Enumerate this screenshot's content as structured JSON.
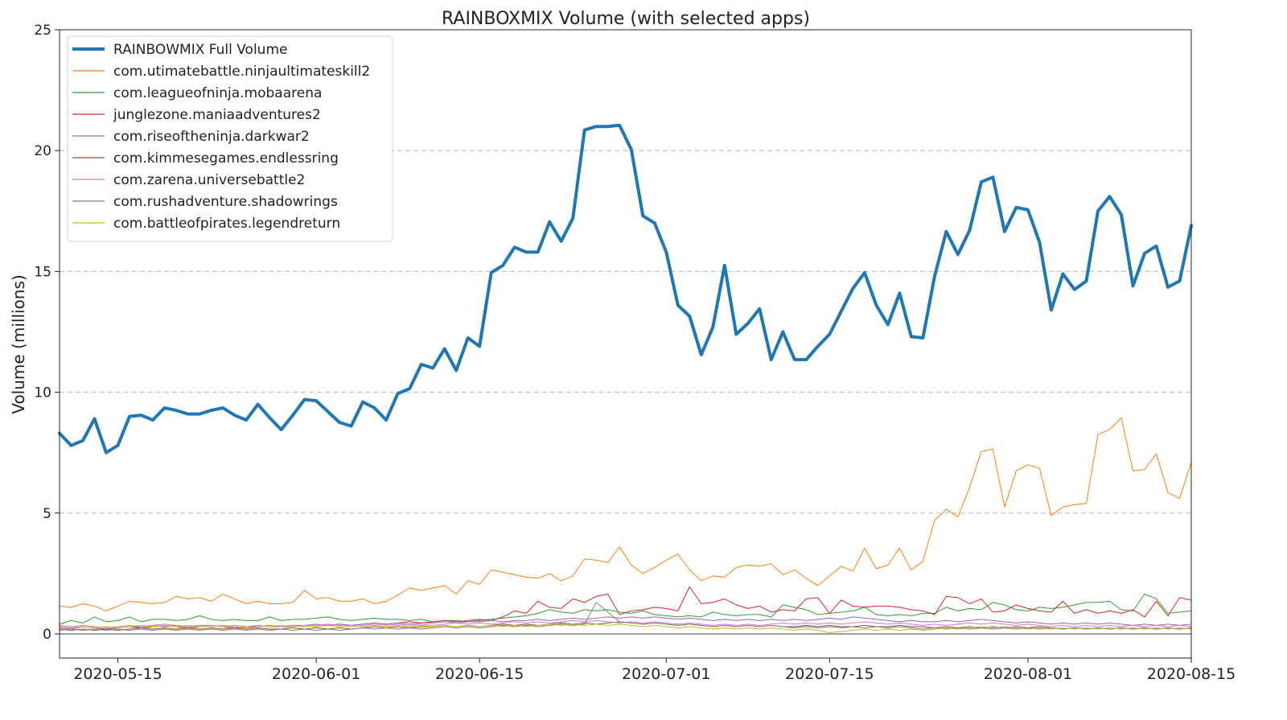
{
  "chart_data": {
    "type": "line",
    "title": "RAINBOXMIX Volume (with selected apps)",
    "ylabel": "Volume (millions)",
    "xlabel": "",
    "ylim": [
      -1,
      25
    ],
    "xlim": [
      "2020-05-10",
      "2020-08-15"
    ],
    "yticks": [
      0,
      5,
      10,
      15,
      20,
      25
    ],
    "xticks": [
      "2020-05-15",
      "2020-06-01",
      "2020-06-15",
      "2020-07-01",
      "2020-07-15",
      "2020-08-01",
      "2020-08-15"
    ],
    "grid": "horizontal dashed at major y ticks",
    "legend_position": "top-left",
    "x_start": "2020-05-10",
    "x_step_days": 1,
    "series": [
      {
        "name": "RAINBOWMIX Full Volume",
        "color": "#1f77b4",
        "linewidth": 4,
        "values": [
          8.3,
          7.8,
          8.0,
          8.9,
          7.5,
          7.8,
          9.0,
          9.05,
          8.85,
          9.35,
          9.25,
          9.1,
          9.1,
          9.25,
          9.35,
          9.05,
          8.85,
          9.5,
          8.95,
          8.45,
          9.05,
          9.7,
          9.65,
          9.2,
          8.75,
          8.6,
          9.6,
          9.35,
          8.85,
          9.95,
          10.15,
          11.15,
          11.0,
          11.8,
          10.9,
          12.25,
          11.9,
          14.95,
          15.25,
          16.0,
          15.8,
          15.8,
          17.05,
          16.25,
          17.2,
          20.85,
          21.0,
          21.0,
          21.05,
          20.05,
          17.3,
          17.0,
          15.8,
          13.6,
          13.15,
          11.55,
          12.7,
          15.25,
          12.4,
          12.85,
          13.45,
          11.35,
          12.5,
          11.35,
          11.35,
          11.9,
          12.4,
          13.35,
          14.3,
          14.95,
          13.6,
          12.8,
          14.1,
          12.3,
          12.25,
          14.8,
          16.65,
          15.7,
          16.7,
          18.7,
          18.9,
          16.65,
          17.65,
          17.55,
          16.2,
          13.4,
          14.9,
          14.25,
          14.6,
          17.5,
          18.1,
          17.35,
          14.4,
          15.75,
          16.05,
          14.35,
          14.6,
          16.9
        ]
      },
      {
        "name": "com.utimatebattle.ninjaultimateskill2",
        "color": "#ff7f0e",
        "linewidth": 1,
        "values": [
          1.15,
          1.1,
          1.25,
          1.15,
          0.95,
          1.15,
          1.35,
          1.3,
          1.25,
          1.3,
          1.55,
          1.45,
          1.5,
          1.35,
          1.65,
          1.45,
          1.25,
          1.35,
          1.25,
          1.25,
          1.3,
          1.8,
          1.45,
          1.5,
          1.35,
          1.35,
          1.45,
          1.25,
          1.35,
          1.6,
          1.9,
          1.8,
          1.9,
          2.0,
          1.65,
          2.2,
          2.05,
          2.65,
          2.55,
          2.45,
          2.35,
          2.3,
          2.5,
          2.2,
          2.4,
          3.1,
          3.05,
          2.95,
          3.6,
          2.85,
          2.5,
          2.75,
          3.05,
          3.3,
          2.65,
          2.2,
          2.4,
          2.35,
          2.75,
          2.85,
          2.8,
          2.9,
          2.45,
          2.65,
          2.3,
          2.0,
          2.4,
          2.8,
          2.6,
          3.55,
          2.7,
          2.85,
          3.55,
          2.65,
          3.0,
          4.7,
          5.15,
          4.85,
          6.05,
          7.55,
          7.65,
          5.25,
          6.75,
          7.0,
          6.85,
          4.9,
          5.25,
          5.35,
          5.4,
          8.25,
          8.45,
          8.95,
          6.75,
          6.8,
          7.45,
          5.85,
          5.6,
          7.1
        ]
      },
      {
        "name": "com.leagueofninja.mobaarena",
        "color": "#2ca02c",
        "linewidth": 1,
        "values": [
          0.4,
          0.55,
          0.45,
          0.7,
          0.5,
          0.55,
          0.7,
          0.5,
          0.6,
          0.6,
          0.55,
          0.6,
          0.75,
          0.6,
          0.55,
          0.6,
          0.55,
          0.55,
          0.7,
          0.55,
          0.6,
          0.6,
          0.65,
          0.7,
          0.6,
          0.55,
          0.6,
          0.65,
          0.6,
          0.6,
          0.55,
          0.6,
          0.5,
          0.55,
          0.55,
          0.5,
          0.55,
          0.6,
          0.65,
          0.7,
          0.75,
          0.85,
          1.0,
          0.9,
          0.85,
          1.0,
          0.95,
          1.0,
          0.9,
          0.85,
          0.95,
          0.8,
          0.75,
          0.7,
          0.75,
          0.7,
          0.9,
          0.8,
          0.75,
          0.8,
          0.8,
          0.7,
          1.2,
          1.1,
          1.0,
          0.8,
          0.85,
          0.9,
          0.95,
          1.1,
          0.8,
          0.75,
          0.8,
          0.75,
          0.85,
          0.85,
          1.1,
          0.95,
          1.05,
          1.0,
          1.3,
          1.2,
          1.0,
          0.95,
          1.1,
          1.05,
          1.1,
          1.2,
          1.3,
          1.3,
          1.35,
          1.0,
          0.95,
          1.65,
          1.45,
          0.85,
          0.9,
          0.95
        ]
      },
      {
        "name": "junglezone.maniaadventures2",
        "color": "#d62728",
        "linewidth": 1,
        "values": [
          0.3,
          0.25,
          0.3,
          0.25,
          0.2,
          0.25,
          0.3,
          0.25,
          0.3,
          0.35,
          0.3,
          0.25,
          0.3,
          0.35,
          0.3,
          0.25,
          0.3,
          0.3,
          0.35,
          0.3,
          0.3,
          0.35,
          0.3,
          0.35,
          0.4,
          0.35,
          0.4,
          0.45,
          0.4,
          0.45,
          0.5,
          0.45,
          0.5,
          0.55,
          0.5,
          0.55,
          0.6,
          0.55,
          0.7,
          0.95,
          0.85,
          1.35,
          1.1,
          1.05,
          1.45,
          1.3,
          1.55,
          1.65,
          0.8,
          0.95,
          1.0,
          1.1,
          1.05,
          0.95,
          1.95,
          1.25,
          1.3,
          1.45,
          1.2,
          1.05,
          1.15,
          0.9,
          1.0,
          0.95,
          1.45,
          1.5,
          0.85,
          1.4,
          1.15,
          1.1,
          1.15,
          1.15,
          1.1,
          1.0,
          0.95,
          0.8,
          1.55,
          1.5,
          1.25,
          1.45,
          0.9,
          0.95,
          1.2,
          1.05,
          0.95,
          0.9,
          1.35,
          0.85,
          1.0,
          0.85,
          0.95,
          0.85,
          1.0,
          0.7,
          1.35,
          0.75,
          1.5,
          1.4
        ]
      },
      {
        "name": "com.riseoftheninja.darkwar2",
        "color": "#9467bd",
        "linewidth": 1,
        "values": [
          0.25,
          0.2,
          0.3,
          0.25,
          0.2,
          0.25,
          0.3,
          0.3,
          0.35,
          0.3,
          0.35,
          0.3,
          0.35,
          0.35,
          0.3,
          0.35,
          0.3,
          0.35,
          0.3,
          0.3,
          0.35,
          0.35,
          0.4,
          0.35,
          0.4,
          0.35,
          0.4,
          0.45,
          0.4,
          0.45,
          0.4,
          0.45,
          0.45,
          0.5,
          0.45,
          0.5,
          0.5,
          0.55,
          0.5,
          0.55,
          0.55,
          0.6,
          0.55,
          0.6,
          0.65,
          0.6,
          0.65,
          0.7,
          0.65,
          0.7,
          0.65,
          0.7,
          0.65,
          0.6,
          0.65,
          0.6,
          0.55,
          0.6,
          0.55,
          0.6,
          0.55,
          0.6,
          0.55,
          0.6,
          0.55,
          0.6,
          0.65,
          0.6,
          0.7,
          0.65,
          0.6,
          0.55,
          0.5,
          0.55,
          0.5,
          0.5,
          0.55,
          0.5,
          0.55,
          0.6,
          0.55,
          0.5,
          0.45,
          0.5,
          0.45,
          0.4,
          0.45,
          0.4,
          0.45,
          0.4,
          0.45,
          0.4,
          0.35,
          0.4,
          0.35,
          0.4,
          0.35,
          0.4
        ]
      },
      {
        "name": "com.kimmesegames.endlessring",
        "color": "#8c564b",
        "linewidth": 1,
        "values": [
          0.2,
          0.15,
          0.2,
          0.15,
          0.2,
          0.15,
          0.2,
          0.25,
          0.2,
          0.25,
          0.2,
          0.25,
          0.2,
          0.25,
          0.2,
          0.25,
          0.2,
          0.25,
          0.2,
          0.2,
          0.25,
          0.2,
          0.25,
          0.2,
          0.25,
          0.2,
          0.25,
          0.3,
          0.25,
          0.3,
          0.25,
          0.3,
          0.3,
          0.35,
          0.3,
          0.35,
          0.3,
          0.35,
          0.4,
          0.35,
          0.4,
          0.35,
          0.4,
          0.45,
          0.4,
          0.45,
          0.4,
          0.45,
          0.5,
          0.45,
          0.4,
          0.45,
          0.4,
          0.35,
          0.4,
          0.35,
          0.3,
          0.35,
          0.3,
          0.35,
          0.3,
          0.35,
          0.3,
          0.3,
          0.35,
          0.3,
          0.35,
          0.3,
          0.3,
          0.35,
          0.3,
          0.3,
          0.35,
          0.3,
          0.3,
          0.25,
          0.3,
          0.25,
          0.3,
          0.25,
          0.3,
          0.25,
          0.3,
          0.25,
          0.3,
          0.25,
          0.2,
          0.25,
          0.2,
          0.25,
          0.2,
          0.25,
          0.2,
          0.25,
          0.2,
          0.25,
          0.2,
          0.25
        ]
      },
      {
        "name": "com.zarena.universebattle2",
        "color": "#e377c2",
        "linewidth": 1,
        "values": [
          0.35,
          0.3,
          0.35,
          0.3,
          0.25,
          0.3,
          0.35,
          0.3,
          0.35,
          0.4,
          0.35,
          0.3,
          0.35,
          0.3,
          0.35,
          0.3,
          0.25,
          0.3,
          0.35,
          0.3,
          0.35,
          0.3,
          0.35,
          0.4,
          0.35,
          0.3,
          0.35,
          0.4,
          0.35,
          0.4,
          0.35,
          0.4,
          0.35,
          0.4,
          0.45,
          0.4,
          0.45,
          0.4,
          0.45,
          0.5,
          0.45,
          0.5,
          0.45,
          0.5,
          0.55,
          0.5,
          0.55,
          0.5,
          0.45,
          0.5,
          0.45,
          0.5,
          0.45,
          0.4,
          0.45,
          0.4,
          0.35,
          0.4,
          0.35,
          0.4,
          0.35,
          0.4,
          0.45,
          0.4,
          0.45,
          0.4,
          0.45,
          0.4,
          0.45,
          0.5,
          0.45,
          0.4,
          0.45,
          0.4,
          0.35,
          0.4,
          0.35,
          0.4,
          0.45,
          0.4,
          0.45,
          0.4,
          0.35,
          0.4,
          0.35,
          0.3,
          0.35,
          0.3,
          0.35,
          0.3,
          0.35,
          0.3,
          0.35,
          0.3,
          0.35,
          0.3,
          0.35,
          0.3
        ]
      },
      {
        "name": "com.rushadventure.shadowrings",
        "color": "#7f7f7f",
        "linewidth": 1,
        "values": [
          0.15,
          0.2,
          0.15,
          0.2,
          0.15,
          0.2,
          0.15,
          0.2,
          0.15,
          0.2,
          0.15,
          0.2,
          0.15,
          0.2,
          0.15,
          0.2,
          0.15,
          0.2,
          0.15,
          0.2,
          0.15,
          0.2,
          0.15,
          0.2,
          0.15,
          0.2,
          0.25,
          0.2,
          0.25,
          0.2,
          0.25,
          0.2,
          0.25,
          0.3,
          0.25,
          0.3,
          0.25,
          0.3,
          0.35,
          0.3,
          0.35,
          0.3,
          0.35,
          0.4,
          0.35,
          0.4,
          1.3,
          0.9,
          0.5,
          0.45,
          0.4,
          0.45,
          0.4,
          0.35,
          0.4,
          0.35,
          0.3,
          0.35,
          0.3,
          0.35,
          0.3,
          0.35,
          0.3,
          0.25,
          0.3,
          0.25,
          0.3,
          0.25,
          0.3,
          0.25,
          0.3,
          0.25,
          0.3,
          0.25,
          0.2,
          0.25,
          0.2,
          0.25,
          0.2,
          0.25,
          0.2,
          0.25,
          0.2,
          0.25,
          0.2,
          0.25,
          0.2,
          0.25,
          0.2,
          0.25,
          0.2,
          0.25,
          0.2,
          0.25,
          0.2,
          0.25,
          0.2,
          0.25
        ]
      },
      {
        "name": "com.battleofpirates.legendreturn",
        "color": "#bcbd22",
        "linewidth": 1,
        "values": [
          0.3,
          0.25,
          0.3,
          0.25,
          0.3,
          0.25,
          0.3,
          0.35,
          0.3,
          0.35,
          0.3,
          0.35,
          0.3,
          0.35,
          0.3,
          0.35,
          0.3,
          0.35,
          0.3,
          0.35,
          0.3,
          0.35,
          0.3,
          0.35,
          0.3,
          0.35,
          0.3,
          0.35,
          0.3,
          0.35,
          0.3,
          0.35,
          0.3,
          0.35,
          0.3,
          0.35,
          0.3,
          0.35,
          0.3,
          0.35,
          0.3,
          0.35,
          0.4,
          0.35,
          0.4,
          0.35,
          0.4,
          0.35,
          0.4,
          0.35,
          0.3,
          0.35,
          0.3,
          0.25,
          0.3,
          0.25,
          0.2,
          0.25,
          0.2,
          0.25,
          0.2,
          0.25,
          0.2,
          0.15,
          0.2,
          0.15,
          0.05,
          0.1,
          0.15,
          0.2,
          0.15,
          0.2,
          0.15,
          0.2,
          0.15,
          0.2,
          0.25,
          0.2,
          0.25,
          0.3,
          0.25,
          0.3,
          0.25,
          0.2,
          0.25,
          0.2,
          0.25,
          0.2,
          0.25,
          0.2,
          0.25,
          0.2,
          0.25,
          0.2,
          0.25,
          0.2,
          0.25,
          0.2
        ]
      }
    ]
  }
}
